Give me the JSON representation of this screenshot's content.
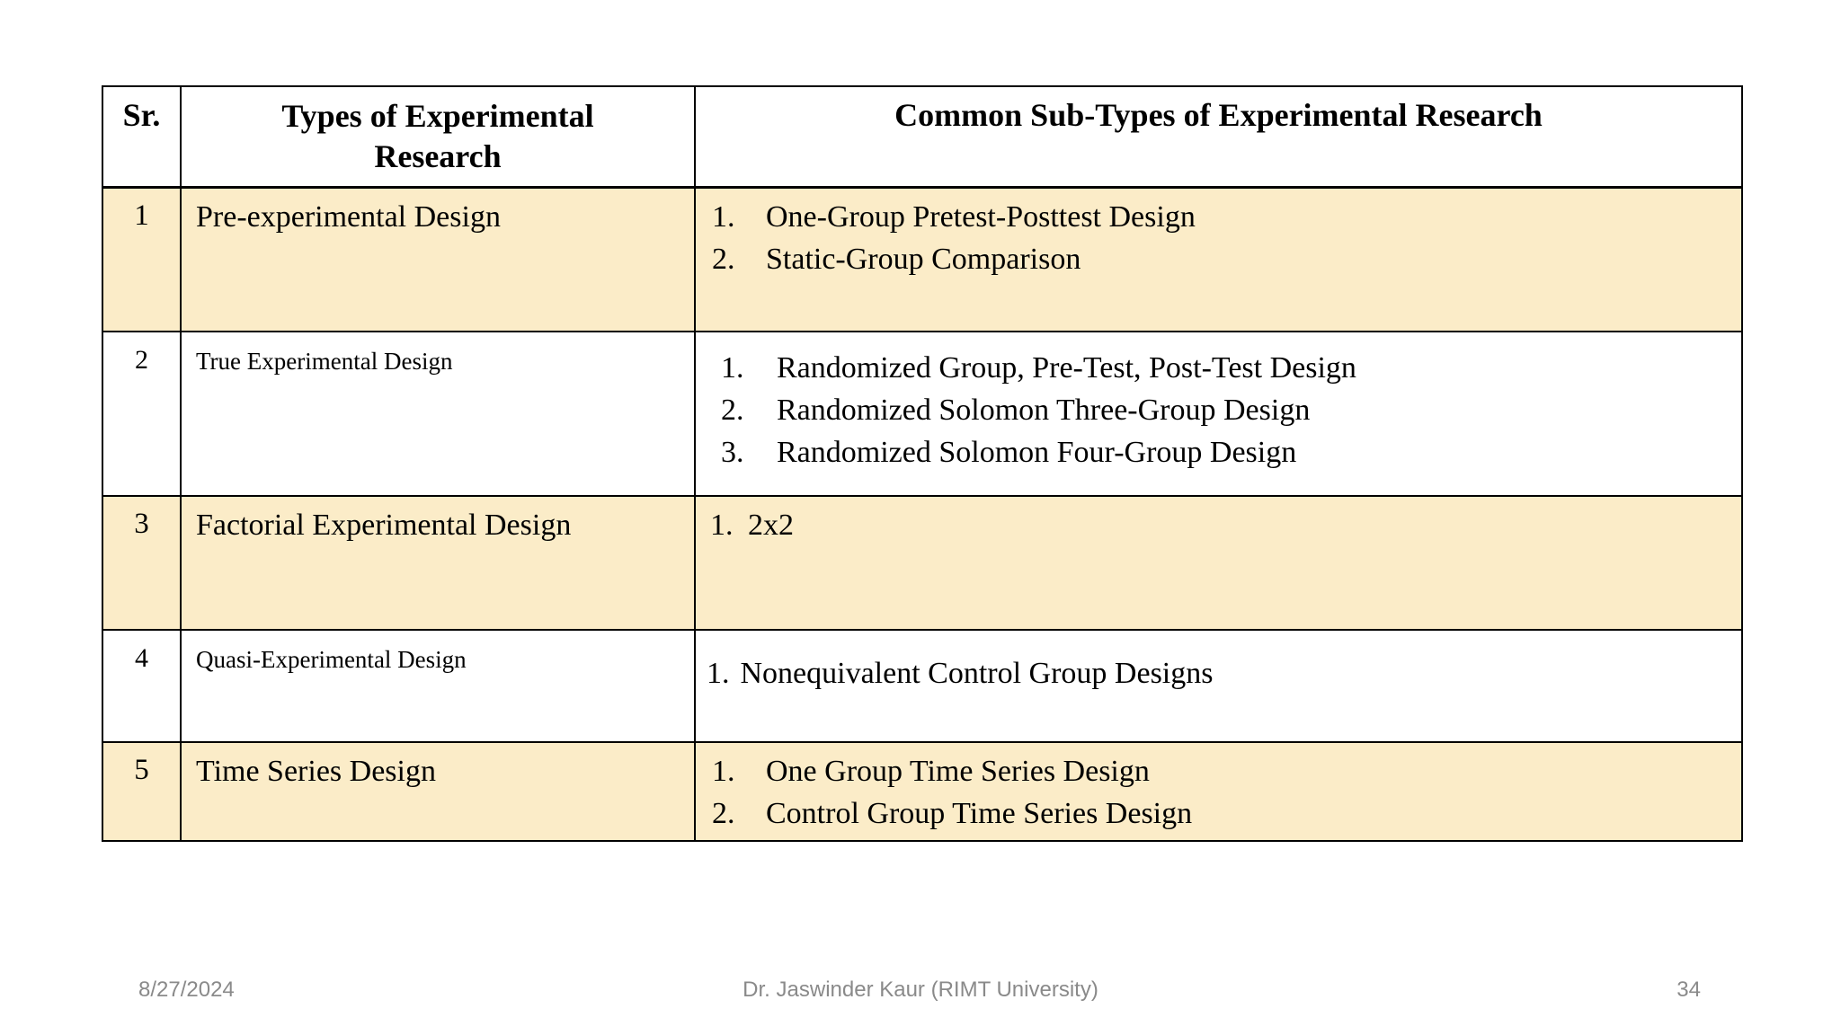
{
  "colors": {
    "shaded_row": "#FBECC8",
    "table_border": "#000000",
    "footer_text": "#8a8a8a",
    "body_text": "#000000",
    "background": "#ffffff"
  },
  "table": {
    "header": {
      "col_sr": "Sr.",
      "col_type": "Types of Experimental Research",
      "col_subtypes": "Common Sub-Types of Experimental Research"
    },
    "rows": [
      {
        "sr": "1",
        "type": "Pre-experimental Design",
        "items": [
          {
            "num": "1.",
            "text": "One-Group Pretest-Posttest Design"
          },
          {
            "num": "2.",
            "text": "Static-Group Comparison"
          }
        ]
      },
      {
        "sr": "2",
        "type": "True Experimental Design",
        "items": [
          {
            "num": "1.",
            "text": "Randomized Group, Pre-Test, Post-Test Design"
          },
          {
            "num": "2.",
            "text": "Randomized Solomon Three-Group Design"
          },
          {
            "num": "3.",
            "text": "Randomized Solomon Four-Group Design"
          }
        ]
      },
      {
        "sr": "3",
        "type": "Factorial Experimental Design",
        "items": [
          {
            "num": "1.",
            "text": "2x2"
          }
        ]
      },
      {
        "sr": "4",
        "type": "Quasi-Experimental Design",
        "items": [
          {
            "num": "1.",
            "text": "Nonequivalent Control Group Designs"
          }
        ]
      },
      {
        "sr": "5",
        "type": "Time Series Design",
        "items": [
          {
            "num": "1.",
            "text": "One Group Time Series Design"
          },
          {
            "num": "2.",
            "text": "Control Group Time Series Design"
          }
        ]
      }
    ]
  },
  "footer": {
    "date": "8/27/2024",
    "credit": "Dr. Jaswinder Kaur (RIMT University)",
    "page_number": "34"
  }
}
